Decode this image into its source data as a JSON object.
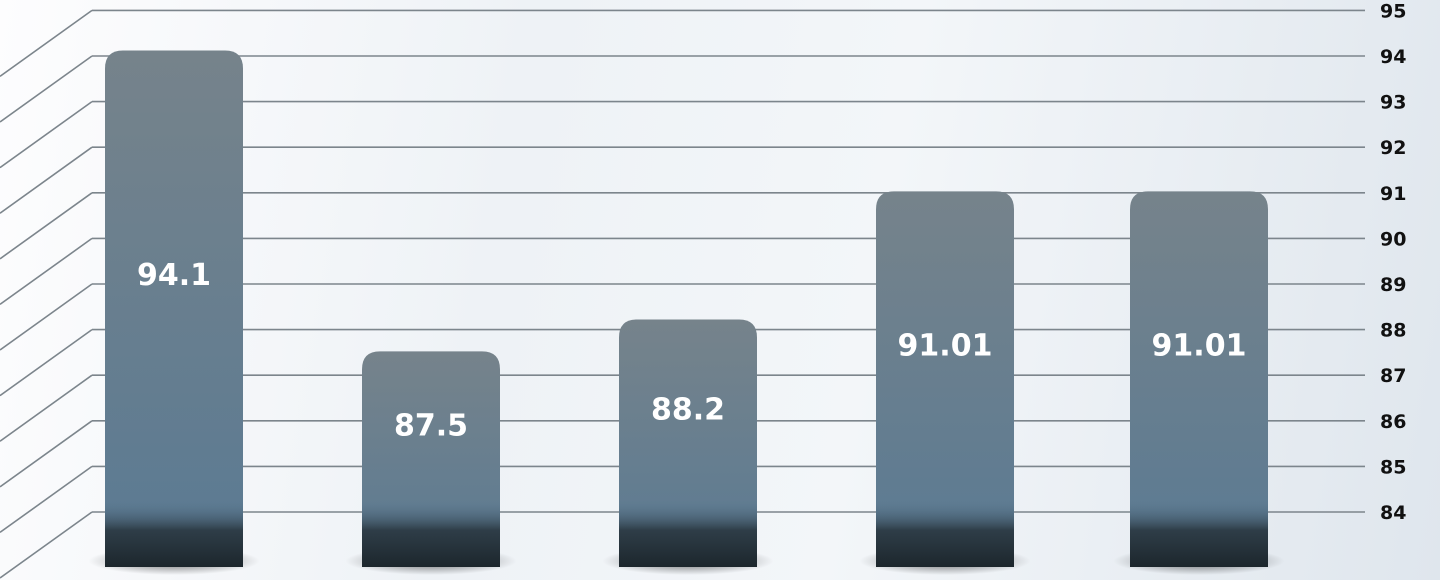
{
  "chart_data": {
    "type": "bar",
    "categories": [
      "",
      "",
      "",
      "",
      ""
    ],
    "values": [
      94.1,
      87.5,
      88.2,
      91.01,
      91.01
    ],
    "value_labels": [
      "94.1",
      "87.5",
      "88.2",
      "91.01",
      "91.01"
    ],
    "title": "",
    "xlabel": "",
    "ylabel": "",
    "ylim": [
      84,
      95
    ],
    "yticks": [
      "84",
      "85",
      "86",
      "87",
      "88",
      "89",
      "90",
      "91",
      "92",
      "93",
      "94",
      "95"
    ],
    "y_axis_side": "right",
    "grid": true,
    "legend": "none",
    "bar_color_top": "#76838b",
    "bar_color_bottom": "#5a7a93",
    "bar_base_color": "#1f2a30"
  }
}
